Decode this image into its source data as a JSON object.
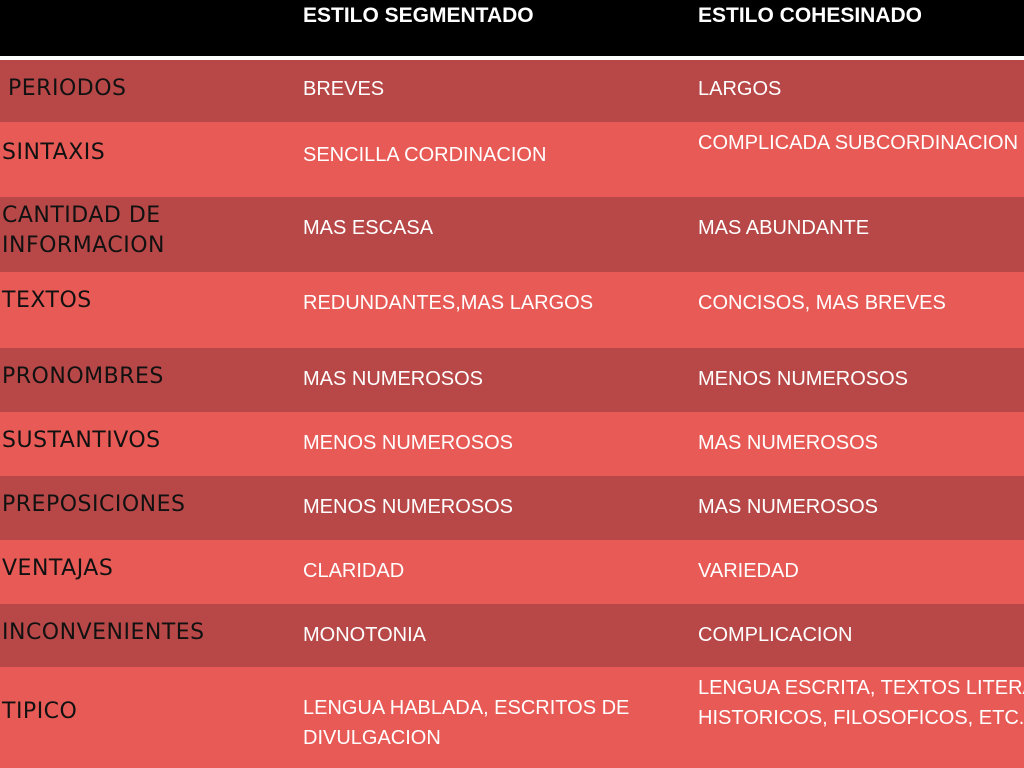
{
  "table": {
    "header": [
      "ESTILO SEGMENTADO",
      "ESTILO COHESINADO"
    ],
    "rows": [
      [
        "PERIODOS",
        "BREVES",
        "LARGOS"
      ],
      [
        "SINTAXIS",
        "SENCILLA CORDINACION",
        "COMPLICADA SUBCORDINACION"
      ],
      [
        "CANTIDAD DE\nINFORMACION",
        "MAS ESCASA",
        "MAS ABUNDANTE"
      ],
      [
        "TEXTOS",
        "REDUNDANTES,MAS LARGOS",
        "CONCISOS, MAS BREVES"
      ],
      [
        "PRONOMBRES",
        "MAS NUMEROSOS",
        "MENOS NUMEROSOS"
      ],
      [
        "SUSTANTIVOS",
        "MENOS NUMEROSOS",
        "MAS NUMEROSOS"
      ],
      [
        "PREPOSICIONES",
        "MENOS NUMEROSOS",
        "MAS NUMEROSOS"
      ],
      [
        "VENTAJAS",
        "CLARIDAD",
        "VARIEDAD"
      ],
      [
        "INCONVENIENTES",
        "MONOTONIA",
        "COMPLICACION"
      ],
      [
        "TIPICO",
        "LENGUA HABLADA, ESCRITOS DE\nDIVULGACION",
        "LENGUA ESCRITA, TEXTOS LITERA\nHISTORICOS, FILOSOFICOS, ETC."
      ]
    ]
  }
}
